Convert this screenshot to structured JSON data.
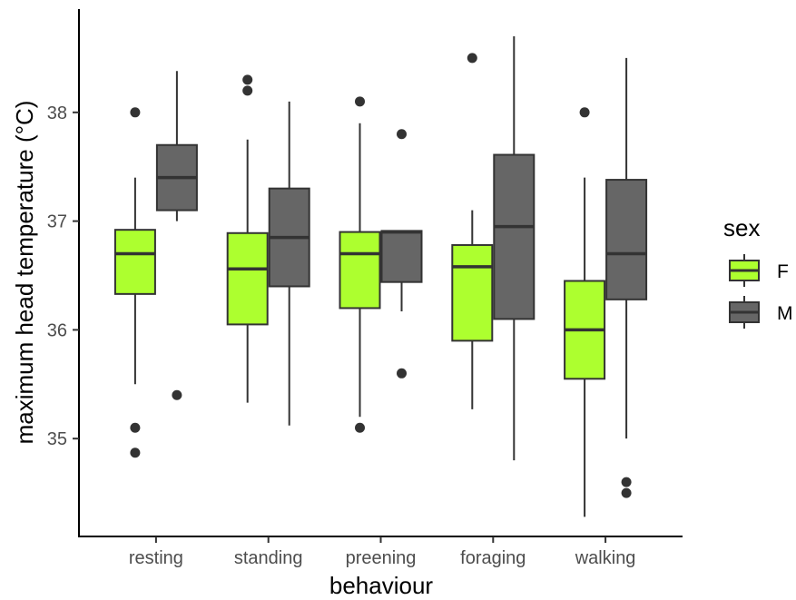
{
  "chart_data": {
    "type": "boxplot",
    "xlabel": "behaviour",
    "ylabel": "maximum head temperature (°C)",
    "categories": [
      "resting",
      "standing",
      "preening",
      "foraging",
      "walking"
    ],
    "ylim": [
      34.1,
      38.95
    ],
    "yticks": [
      35,
      36,
      37,
      38
    ],
    "grid": false,
    "legend": {
      "title": "sex",
      "position": "right"
    },
    "series": [
      {
        "name": "F",
        "color": "#adff2f",
        "boxes": [
          {
            "category": "resting",
            "min": 35.5,
            "q1": 36.33,
            "median": 36.7,
            "q3": 36.92,
            "max": 37.4,
            "outliers": [
              38.0,
              35.1,
              34.87
            ]
          },
          {
            "category": "standing",
            "min": 35.33,
            "q1": 36.05,
            "median": 36.56,
            "q3": 36.89,
            "max": 37.75,
            "outliers": []
          },
          {
            "category": "preening",
            "min": 35.2,
            "q1": 36.2,
            "median": 36.7,
            "q3": 36.9,
            "max": 37.9,
            "outliers": [
              38.1,
              35.1
            ]
          },
          {
            "category": "foraging",
            "min": 35.27,
            "q1": 35.9,
            "median": 36.58,
            "q3": 36.78,
            "max": 37.1,
            "outliers": [
              38.5
            ]
          },
          {
            "category": "walking",
            "min": 34.28,
            "q1": 35.55,
            "median": 36.0,
            "q3": 36.45,
            "max": 37.4,
            "outliers": [
              38.0
            ]
          }
        ]
      },
      {
        "name": "M",
        "color": "#666666",
        "boxes": [
          {
            "category": "resting",
            "min": 37.0,
            "q1": 37.1,
            "median": 37.4,
            "q3": 37.7,
            "max": 38.38,
            "outliers": [
              35.4
            ]
          },
          {
            "category": "standing",
            "min": 35.12,
            "q1": 36.4,
            "median": 36.85,
            "q3": 37.3,
            "max": 38.1,
            "outliers": []
          },
          {
            "category": "preening",
            "min": 36.17,
            "q1": 36.44,
            "median": 36.9,
            "q3": 36.91,
            "max": 36.91,
            "outliers": [
              37.8,
              35.6
            ]
          },
          {
            "category": "foraging",
            "min": 34.8,
            "q1": 36.1,
            "median": 36.95,
            "q3": 37.61,
            "max": 38.7,
            "outliers": []
          },
          {
            "category": "walking",
            "min": 35.0,
            "q1": 36.28,
            "median": 36.7,
            "q3": 37.38,
            "max": 38.5,
            "outliers": [
              34.6,
              34.5
            ]
          }
        ]
      }
    ]
  },
  "standing_extra_outliers": {
    "category": "standing",
    "series": "F",
    "values": [
      38.3,
      38.2
    ]
  }
}
